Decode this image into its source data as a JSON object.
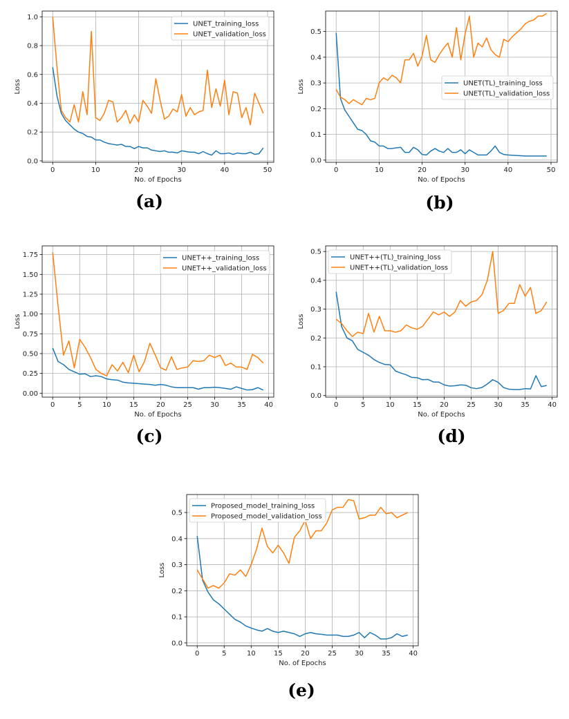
{
  "colors": {
    "training": "#1f77b4",
    "validation": "#ff7f0e",
    "grid": "#b0b0b0"
  },
  "chart_data": [
    {
      "id": "a",
      "caption": "(a)",
      "type": "line",
      "xlabel": "No. of Epochs",
      "ylabel": "Loss",
      "xlim": [
        -2.45,
        51.45
      ],
      "ylim": [
        -0.01,
        1.04
      ],
      "xticks": [
        0,
        10,
        20,
        30,
        40,
        50
      ],
      "xtick_labels": [
        "0",
        "10",
        "20",
        "30",
        "40",
        "50"
      ],
      "yticks": [
        0.0,
        0.2,
        0.4,
        0.6,
        0.8,
        1.0
      ],
      "ytick_labels": [
        "0.0",
        "0.2",
        "0.4",
        "0.6",
        "0.8",
        "1.0"
      ],
      "legend_position": "top-right",
      "series": [
        {
          "name": "UNET_training_loss",
          "color": "#1f77b4",
          "values": [
            0.65,
            0.45,
            0.33,
            0.28,
            0.25,
            0.22,
            0.2,
            0.19,
            0.17,
            0.165,
            0.145,
            0.145,
            0.13,
            0.12,
            0.115,
            0.11,
            0.115,
            0.1,
            0.1,
            0.085,
            0.1,
            0.09,
            0.09,
            0.075,
            0.07,
            0.065,
            0.07,
            0.06,
            0.06,
            0.055,
            0.07,
            0.065,
            0.06,
            0.06,
            0.05,
            0.065,
            0.05,
            0.04,
            0.07,
            0.05,
            0.05,
            0.055,
            0.045,
            0.055,
            0.05,
            0.05,
            0.06,
            0.045,
            0.05,
            0.09
          ]
        },
        {
          "name": "UNET_validation_loss",
          "color": "#ff7f0e",
          "values": [
            1.0,
            0.65,
            0.35,
            0.3,
            0.27,
            0.39,
            0.27,
            0.48,
            0.32,
            0.9,
            0.3,
            0.28,
            0.33,
            0.42,
            0.41,
            0.27,
            0.3,
            0.35,
            0.26,
            0.32,
            0.27,
            0.42,
            0.38,
            0.33,
            0.57,
            0.42,
            0.29,
            0.31,
            0.36,
            0.34,
            0.46,
            0.31,
            0.37,
            0.32,
            0.34,
            0.35,
            0.63,
            0.37,
            0.5,
            0.38,
            0.56,
            0.32,
            0.48,
            0.47,
            0.3,
            0.37,
            0.25,
            0.47,
            0.4,
            0.33
          ]
        }
      ]
    },
    {
      "id": "b",
      "caption": "(b)",
      "type": "line",
      "xlabel": "No. of Epochs",
      "ylabel": "Loss",
      "xlim": [
        -2.45,
        51.45
      ],
      "ylim": [
        -0.0085,
        0.5795
      ],
      "xticks": [
        0,
        10,
        20,
        30,
        40,
        50
      ],
      "xtick_labels": [
        "0",
        "10",
        "20",
        "30",
        "40",
        "50"
      ],
      "yticks": [
        0.0,
        0.1,
        0.2,
        0.3,
        0.4,
        0.5
      ],
      "ytick_labels": [
        "0.0",
        "0.1",
        "0.2",
        "0.3",
        "0.4",
        "0.5"
      ],
      "legend_position": "center-right",
      "series": [
        {
          "name": "UNET(TL)_training_loss",
          "color": "#1f77b4",
          "values": [
            0.495,
            0.24,
            0.195,
            0.17,
            0.145,
            0.12,
            0.115,
            0.1,
            0.075,
            0.07,
            0.055,
            0.055,
            0.045,
            0.045,
            0.048,
            0.05,
            0.03,
            0.03,
            0.05,
            0.04,
            0.022,
            0.02,
            0.035,
            0.045,
            0.035,
            0.03,
            0.045,
            0.03,
            0.03,
            0.04,
            0.025,
            0.04,
            0.03,
            0.02,
            0.02,
            0.02,
            0.035,
            0.055,
            0.03,
            0.022,
            0.02,
            0.019,
            0.018,
            0.017,
            0.016,
            0.016,
            0.016,
            0.016,
            0.016,
            0.016
          ]
        },
        {
          "name": "UNET(TL)_validation_loss",
          "color": "#ff7f0e",
          "values": [
            0.275,
            0.245,
            0.235,
            0.22,
            0.235,
            0.225,
            0.215,
            0.24,
            0.235,
            0.24,
            0.3,
            0.32,
            0.31,
            0.33,
            0.32,
            0.3,
            0.39,
            0.39,
            0.415,
            0.365,
            0.405,
            0.485,
            0.39,
            0.38,
            0.41,
            0.435,
            0.455,
            0.4,
            0.515,
            0.39,
            0.49,
            0.56,
            0.4,
            0.455,
            0.44,
            0.475,
            0.43,
            0.41,
            0.4,
            0.47,
            0.46,
            0.48,
            0.495,
            0.51,
            0.53,
            0.54,
            0.545,
            0.56,
            0.56,
            0.57
          ]
        }
      ]
    },
    {
      "id": "c",
      "caption": "(c)",
      "type": "line",
      "xlabel": "No. of Epochs",
      "ylabel": "Loss",
      "xlim": [
        -1.95,
        40.95
      ],
      "ylim": [
        -0.05,
        1.86
      ],
      "xticks": [
        0,
        5,
        10,
        15,
        20,
        25,
        30,
        35,
        40
      ],
      "xtick_labels": [
        "0",
        "5",
        "10",
        "15",
        "20",
        "25",
        "30",
        "35",
        "40"
      ],
      "yticks": [
        0.0,
        0.25,
        0.5,
        0.75,
        1.0,
        1.25,
        1.5,
        1.75
      ],
      "ytick_labels": [
        "0.00",
        "0.25",
        "0.50",
        "0.75",
        "1.00",
        "1.25",
        "1.50",
        "1.75"
      ],
      "legend_position": "top-right",
      "series": [
        {
          "name": "UNET++_training_loss",
          "color": "#1f77b4",
          "values": [
            0.57,
            0.4,
            0.36,
            0.3,
            0.27,
            0.24,
            0.245,
            0.21,
            0.22,
            0.21,
            0.18,
            0.17,
            0.165,
            0.14,
            0.13,
            0.125,
            0.12,
            0.115,
            0.11,
            0.1,
            0.11,
            0.1,
            0.08,
            0.07,
            0.07,
            0.07,
            0.07,
            0.05,
            0.07,
            0.07,
            0.075,
            0.07,
            0.06,
            0.05,
            0.08,
            0.06,
            0.04,
            0.045,
            0.07,
            0.04
          ]
        },
        {
          "name": "UNET++_validation_loss",
          "color": "#ff7f0e",
          "values": [
            1.78,
            1.1,
            0.48,
            0.66,
            0.32,
            0.68,
            0.58,
            0.45,
            0.3,
            0.25,
            0.22,
            0.36,
            0.28,
            0.39,
            0.26,
            0.48,
            0.27,
            0.4,
            0.63,
            0.48,
            0.32,
            0.29,
            0.46,
            0.3,
            0.32,
            0.33,
            0.41,
            0.4,
            0.41,
            0.48,
            0.45,
            0.48,
            0.35,
            0.38,
            0.33,
            0.33,
            0.3,
            0.49,
            0.45,
            0.38
          ]
        }
      ]
    },
    {
      "id": "d",
      "caption": "(d)",
      "type": "line",
      "xlabel": "No. of Epochs",
      "ylabel": "Loss",
      "xlim": [
        -1.95,
        40.95
      ],
      "ylim": [
        -0.0055,
        0.5195
      ],
      "xticks": [
        0,
        5,
        10,
        15,
        20,
        25,
        30,
        35,
        40
      ],
      "xtick_labels": [
        "0",
        "5",
        "10",
        "15",
        "20",
        "25",
        "30",
        "35",
        "40"
      ],
      "yticks": [
        0.0,
        0.1,
        0.2,
        0.3,
        0.4,
        0.5
      ],
      "ytick_labels": [
        "0.0",
        "0.1",
        "0.2",
        "0.3",
        "0.4",
        "0.5"
      ],
      "legend_position": "top-left",
      "series": [
        {
          "name": "UNET++(TL)_training_loss",
          "color": "#1f77b4",
          "values": [
            0.36,
            0.24,
            0.2,
            0.19,
            0.16,
            0.15,
            0.14,
            0.125,
            0.115,
            0.108,
            0.107,
            0.085,
            0.078,
            0.072,
            0.063,
            0.062,
            0.055,
            0.056,
            0.047,
            0.047,
            0.037,
            0.033,
            0.034,
            0.037,
            0.036,
            0.027,
            0.024,
            0.028,
            0.04,
            0.055,
            0.046,
            0.028,
            0.022,
            0.021,
            0.021,
            0.024,
            0.023,
            0.069,
            0.031,
            0.035
          ]
        },
        {
          "name": "UNET++(TL)_validation_loss",
          "color": "#ff7f0e",
          "values": [
            0.265,
            0.25,
            0.225,
            0.205,
            0.22,
            0.215,
            0.285,
            0.22,
            0.275,
            0.225,
            0.225,
            0.22,
            0.225,
            0.245,
            0.235,
            0.23,
            0.24,
            0.265,
            0.29,
            0.28,
            0.29,
            0.275,
            0.29,
            0.33,
            0.31,
            0.325,
            0.33,
            0.35,
            0.4,
            0.5,
            0.285,
            0.295,
            0.32,
            0.32,
            0.385,
            0.345,
            0.375,
            0.285,
            0.295,
            0.325
          ]
        }
      ]
    },
    {
      "id": "e",
      "caption": "(e)",
      "type": "line",
      "xlabel": "No. of Epochs",
      "ylabel": "Loss",
      "xlim": [
        -1.95,
        40.95
      ],
      "ylim": [
        -0.011,
        0.569
      ],
      "xticks": [
        0,
        5,
        10,
        15,
        20,
        25,
        30,
        35,
        40
      ],
      "xtick_labels": [
        "0",
        "5",
        "10",
        "15",
        "20",
        "25",
        "30",
        "35",
        "40"
      ],
      "yticks": [
        0.0,
        0.1,
        0.2,
        0.3,
        0.4,
        0.5
      ],
      "ytick_labels": [
        "0.0",
        "0.1",
        "0.2",
        "0.3",
        "0.4",
        "0.5"
      ],
      "legend_position": "top-left",
      "series": [
        {
          "name": "Proposed_model_training_loss",
          "color": "#1f77b4",
          "values": [
            0.41,
            0.24,
            0.195,
            0.165,
            0.15,
            0.13,
            0.11,
            0.09,
            0.08,
            0.065,
            0.057,
            0.05,
            0.045,
            0.055,
            0.045,
            0.04,
            0.045,
            0.04,
            0.035,
            0.025,
            0.035,
            0.04,
            0.035,
            0.033,
            0.03,
            0.03,
            0.03,
            0.025,
            0.025,
            0.03,
            0.04,
            0.02,
            0.04,
            0.03,
            0.015,
            0.015,
            0.02,
            0.035,
            0.025,
            0.03
          ]
        },
        {
          "name": "Proposed_model_validation_loss",
          "color": "#ff7f0e",
          "values": [
            0.28,
            0.245,
            0.21,
            0.22,
            0.21,
            0.23,
            0.265,
            0.26,
            0.28,
            0.255,
            0.3,
            0.36,
            0.44,
            0.37,
            0.345,
            0.375,
            0.345,
            0.305,
            0.405,
            0.43,
            0.47,
            0.4,
            0.43,
            0.43,
            0.46,
            0.51,
            0.52,
            0.52,
            0.55,
            0.545,
            0.475,
            0.48,
            0.49,
            0.49,
            0.52,
            0.495,
            0.5,
            0.48,
            0.49,
            0.5
          ]
        }
      ]
    }
  ]
}
